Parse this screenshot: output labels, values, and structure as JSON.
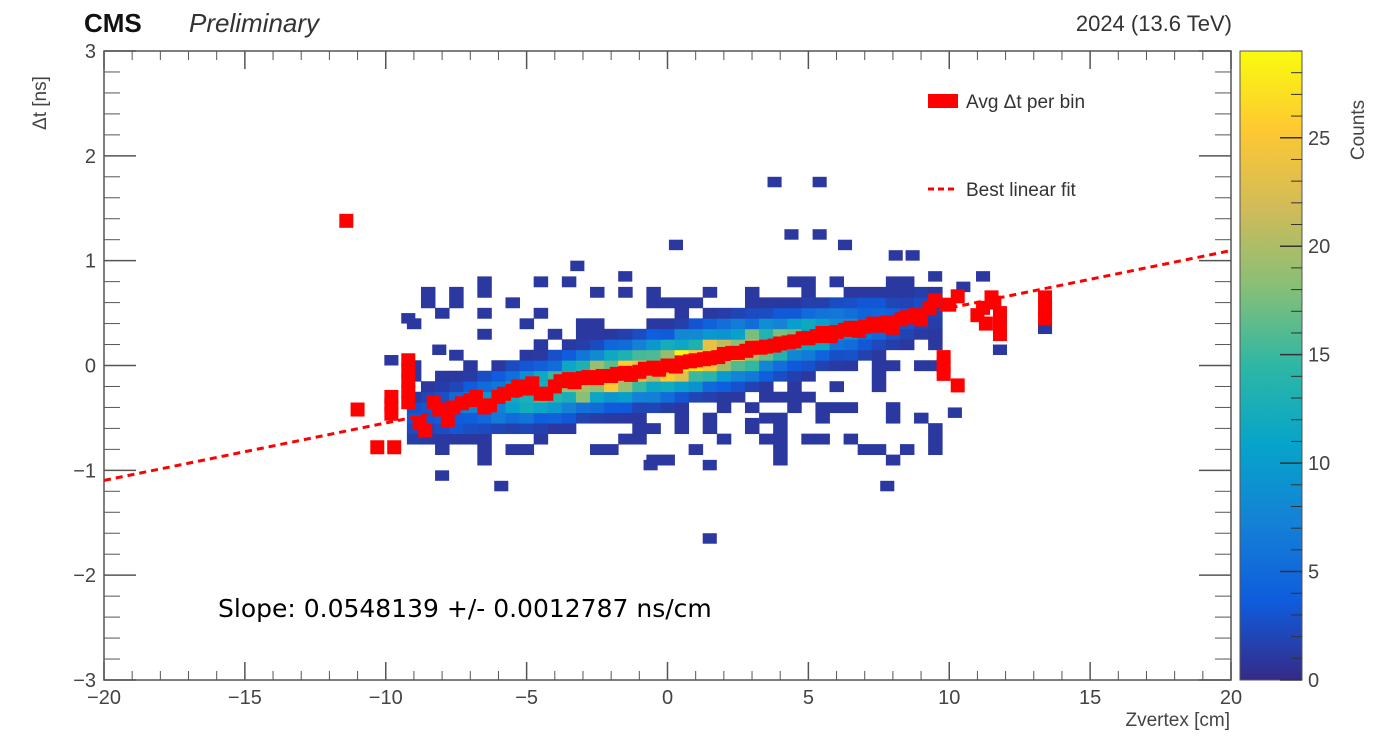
{
  "header": {
    "experiment": "CMS",
    "status": "Preliminary",
    "run_info": "2024 (13.6 TeV)"
  },
  "annotation": {
    "slope_text": "Slope: 0.0548139 +/- 0.0012787 ns/cm"
  },
  "chart_data": {
    "type": "heatmap",
    "xlabel": "Zvertex [cm]",
    "ylabel": "Δt [ns]",
    "zlabel": "Counts",
    "xlim": [
      -20,
      20
    ],
    "ylim": [
      -3,
      3
    ],
    "zlim": [
      0,
      29
    ],
    "x_ticks": [
      -20,
      -15,
      -10,
      -5,
      0,
      5,
      10,
      15,
      20
    ],
    "y_ticks": [
      -3,
      -2,
      -1,
      0,
      1,
      2,
      3
    ],
    "z_ticks": [
      0,
      5,
      10,
      15,
      20,
      25
    ],
    "x_tick_labels": [
      "−20",
      "−15",
      "−10",
      "−5",
      "0",
      "5",
      "10",
      "15",
      "20"
    ],
    "y_tick_labels": [
      "−3",
      "−2",
      "−1",
      "0",
      "1",
      "2",
      "3"
    ],
    "z_tick_labels": [
      "0",
      "5",
      "10",
      "15",
      "20",
      "25"
    ],
    "bin_width_x": 0.5,
    "bin_width_y": 0.1,
    "grid": false,
    "legend_position": "top-right",
    "legend": [
      {
        "label": "Avg Δt per bin",
        "style": "marker",
        "color": "#ff0000"
      },
      {
        "label": "Best linear fit",
        "style": "dashed-line",
        "color": "#ff0000"
      }
    ],
    "colormap": [
      "#352a87",
      "#0f5cdd",
      "#1481d6",
      "#06a4ca",
      "#2eb7a4",
      "#87bf77",
      "#d1bb59",
      "#fec832",
      "#f9fb0e"
    ],
    "fit": {
      "slope": 0.0548139,
      "intercept": 0.0,
      "x_range": [
        -20,
        20
      ],
      "color": "#ff0000"
    },
    "outlier_bins": [
      {
        "x": -8.0,
        "y": -1.05,
        "count": 1
      },
      {
        "x": -5.9,
        "y": -1.15,
        "count": 1
      },
      {
        "x": 0.3,
        "y": 1.15,
        "count": 1
      },
      {
        "x": 1.5,
        "y": -1.65,
        "count": 1
      },
      {
        "x": 3.8,
        "y": 1.75,
        "count": 1
      },
      {
        "x": 5.4,
        "y": 1.75,
        "count": 1
      },
      {
        "x": 4.4,
        "y": 1.25,
        "count": 1
      },
      {
        "x": 5.4,
        "y": 1.25,
        "count": 1
      },
      {
        "x": 6.3,
        "y": 1.15,
        "count": 1
      },
      {
        "x": 7.8,
        "y": -1.15,
        "count": 1
      },
      {
        "x": 8.1,
        "y": 1.05,
        "count": 1
      },
      {
        "x": 8.7,
        "y": 1.05,
        "count": 1
      },
      {
        "x": 10.2,
        "y": -0.45,
        "count": 1
      },
      {
        "x": 13.4,
        "y": 0.35,
        "count": 1
      },
      {
        "x": 11.8,
        "y": 0.15,
        "count": 1
      },
      {
        "x": -9.2,
        "y": 0.45,
        "count": 1
      },
      {
        "x": -9.8,
        "y": 0.05,
        "count": 1
      },
      {
        "x": -8.1,
        "y": 0.15,
        "count": 1
      },
      {
        "x": -3.2,
        "y": 0.95,
        "count": 1
      },
      {
        "x": -1.5,
        "y": 0.85,
        "count": 1
      },
      {
        "x": -0.6,
        "y": -0.95,
        "count": 1
      },
      {
        "x": 1.5,
        "y": -0.95,
        "count": 1
      },
      {
        "x": 3.0,
        "y": -0.55,
        "count": 1
      },
      {
        "x": 9.5,
        "y": 0.85,
        "count": 1
      },
      {
        "x": 10.5,
        "y": 0.75,
        "count": 1
      },
      {
        "x": 11.2,
        "y": 0.85,
        "count": 1
      }
    ],
    "profile_points": [
      {
        "x": -11.4,
        "y": 1.38
      },
      {
        "x": -11.0,
        "y": -0.42
      },
      {
        "x": -10.3,
        "y": -0.78
      },
      {
        "x": -9.7,
        "y": -0.78
      },
      {
        "x": -9.8,
        "y": -0.3
      },
      {
        "x": -9.8,
        "y": -0.38
      },
      {
        "x": -9.8,
        "y": -0.46
      },
      {
        "x": -9.2,
        "y": 0.05
      },
      {
        "x": -9.2,
        "y": -0.05
      },
      {
        "x": -9.2,
        "y": -0.15
      },
      {
        "x": -9.2,
        "y": -0.25
      },
      {
        "x": -9.2,
        "y": -0.35
      },
      {
        "x": -8.8,
        "y": -0.55
      },
      {
        "x": -8.6,
        "y": -0.62
      },
      {
        "x": -8.3,
        "y": -0.35
      },
      {
        "x": -8.1,
        "y": -0.42
      },
      {
        "x": -7.8,
        "y": -0.52
      },
      {
        "x": -7.6,
        "y": -0.4
      },
      {
        "x": -7.3,
        "y": -0.36
      },
      {
        "x": -7.0,
        "y": -0.33
      },
      {
        "x": -6.8,
        "y": -0.3
      },
      {
        "x": -6.5,
        "y": -0.4
      },
      {
        "x": -6.3,
        "y": -0.38
      },
      {
        "x": -6.0,
        "y": -0.3
      },
      {
        "x": -5.8,
        "y": -0.27
      },
      {
        "x": -5.5,
        "y": -0.24
      },
      {
        "x": -5.3,
        "y": -0.2
      },
      {
        "x": -5.0,
        "y": -0.22
      },
      {
        "x": -4.8,
        "y": -0.17
      },
      {
        "x": -4.5,
        "y": -0.27
      },
      {
        "x": -4.3,
        "y": -0.27
      },
      {
        "x": -4.0,
        "y": -0.2
      },
      {
        "x": -3.8,
        "y": -0.15
      },
      {
        "x": -3.5,
        "y": -0.13
      },
      {
        "x": -3.3,
        "y": -0.16
      },
      {
        "x": -3.0,
        "y": -0.12
      },
      {
        "x": -2.8,
        "y": -0.11
      },
      {
        "x": -2.5,
        "y": -0.12
      },
      {
        "x": -2.3,
        "y": -0.1
      },
      {
        "x": -2.0,
        "y": -0.1
      },
      {
        "x": -1.8,
        "y": -0.08
      },
      {
        "x": -1.5,
        "y": -0.07
      },
      {
        "x": -1.3,
        "y": -0.09
      },
      {
        "x": -1.0,
        "y": -0.06
      },
      {
        "x": -0.8,
        "y": -0.03
      },
      {
        "x": -0.5,
        "y": -0.02
      },
      {
        "x": -0.3,
        "y": -0.04
      },
      {
        "x": 0.0,
        "y": 0.0
      },
      {
        "x": 0.3,
        "y": -0.01
      },
      {
        "x": 0.5,
        "y": 0.03
      },
      {
        "x": 0.8,
        "y": 0.04
      },
      {
        "x": 1.0,
        "y": 0.05
      },
      {
        "x": 1.3,
        "y": 0.06
      },
      {
        "x": 1.5,
        "y": 0.07
      },
      {
        "x": 1.8,
        "y": 0.08
      },
      {
        "x": 2.0,
        "y": 0.11
      },
      {
        "x": 2.3,
        "y": 0.12
      },
      {
        "x": 2.5,
        "y": 0.12
      },
      {
        "x": 2.8,
        "y": 0.14
      },
      {
        "x": 3.0,
        "y": 0.17
      },
      {
        "x": 3.3,
        "y": 0.17
      },
      {
        "x": 3.5,
        "y": 0.18
      },
      {
        "x": 3.8,
        "y": 0.19
      },
      {
        "x": 4.0,
        "y": 0.21
      },
      {
        "x": 4.3,
        "y": 0.22
      },
      {
        "x": 4.5,
        "y": 0.23
      },
      {
        "x": 4.8,
        "y": 0.26
      },
      {
        "x": 5.0,
        "y": 0.26
      },
      {
        "x": 5.3,
        "y": 0.28
      },
      {
        "x": 5.5,
        "y": 0.31
      },
      {
        "x": 5.8,
        "y": 0.28
      },
      {
        "x": 6.0,
        "y": 0.32
      },
      {
        "x": 6.3,
        "y": 0.34
      },
      {
        "x": 6.5,
        "y": 0.36
      },
      {
        "x": 6.8,
        "y": 0.33
      },
      {
        "x": 7.0,
        "y": 0.37
      },
      {
        "x": 7.3,
        "y": 0.4
      },
      {
        "x": 7.5,
        "y": 0.38
      },
      {
        "x": 7.8,
        "y": 0.41
      },
      {
        "x": 8.0,
        "y": 0.36
      },
      {
        "x": 8.3,
        "y": 0.44
      },
      {
        "x": 8.5,
        "y": 0.46
      },
      {
        "x": 8.8,
        "y": 0.48
      },
      {
        "x": 9.0,
        "y": 0.44
      },
      {
        "x": 9.3,
        "y": 0.55
      },
      {
        "x": 9.5,
        "y": 0.62
      },
      {
        "x": 9.8,
        "y": 0.08
      },
      {
        "x": 9.8,
        "y": 0.0
      },
      {
        "x": 9.8,
        "y": -0.08
      },
      {
        "x": 10.0,
        "y": 0.58
      },
      {
        "x": 10.3,
        "y": 0.66
      },
      {
        "x": 10.3,
        "y": -0.19
      },
      {
        "x": 11.0,
        "y": 0.48
      },
      {
        "x": 11.2,
        "y": 0.55
      },
      {
        "x": 11.3,
        "y": 0.4
      },
      {
        "x": 11.5,
        "y": 0.65
      },
      {
        "x": 11.6,
        "y": 0.6
      },
      {
        "x": 11.8,
        "y": 0.5
      },
      {
        "x": 11.8,
        "y": 0.4
      },
      {
        "x": 11.8,
        "y": 0.3
      },
      {
        "x": 13.4,
        "y": 0.65
      },
      {
        "x": 13.4,
        "y": 0.55
      },
      {
        "x": 13.4,
        "y": 0.45
      }
    ]
  }
}
